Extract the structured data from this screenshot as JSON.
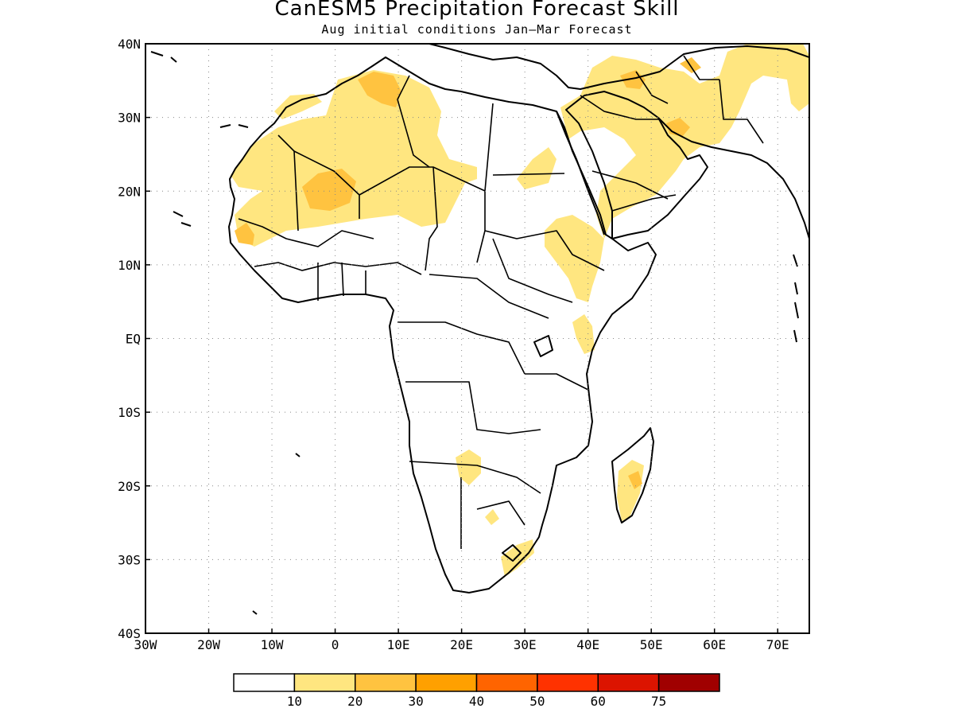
{
  "title": "CanESM5 Precipitation Forecast Skill",
  "subtitle": "Aug initial conditions  Jan–Mar Forecast",
  "map": {
    "lon_range": [
      -30,
      75
    ],
    "lat_range": [
      -40,
      40
    ],
    "lon_ticks": [
      {
        "v": -30,
        "label": "30W"
      },
      {
        "v": -20,
        "label": "20W"
      },
      {
        "v": -10,
        "label": "10W"
      },
      {
        "v": 0,
        "label": "0"
      },
      {
        "v": 10,
        "label": "10E"
      },
      {
        "v": 20,
        "label": "20E"
      },
      {
        "v": 30,
        "label": "30E"
      },
      {
        "v": 40,
        "label": "40E"
      },
      {
        "v": 50,
        "label": "50E"
      },
      {
        "v": 60,
        "label": "60E"
      },
      {
        "v": 70,
        "label": "70E"
      }
    ],
    "lat_ticks": [
      {
        "v": 40,
        "label": "40N"
      },
      {
        "v": 30,
        "label": "30N"
      },
      {
        "v": 20,
        "label": "20N"
      },
      {
        "v": 10,
        "label": "10N"
      },
      {
        "v": 0,
        "label": "EQ"
      },
      {
        "v": -10,
        "label": "10S"
      },
      {
        "v": -20,
        "label": "20S"
      },
      {
        "v": -30,
        "label": "30S"
      },
      {
        "v": -40,
        "label": "40S"
      }
    ],
    "grid": true
  },
  "colorbar": {
    "colors": [
      "#ffffff",
      "#ffe680",
      "#ffc340",
      "#ffa000",
      "#ff6400",
      "#ff3200",
      "#dc1400",
      "#a00000"
    ],
    "labels": [
      "10",
      "20",
      "30",
      "40",
      "50",
      "60",
      "75"
    ]
  }
}
